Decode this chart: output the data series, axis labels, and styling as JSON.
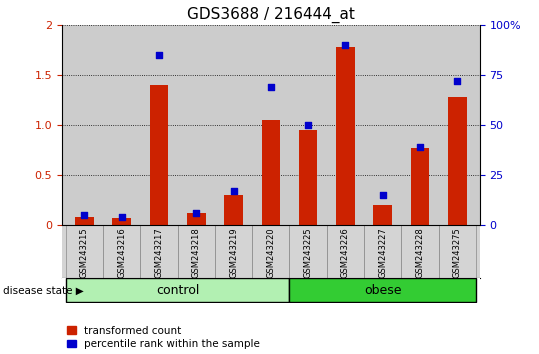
{
  "title": "GDS3688 / 216444_at",
  "samples": [
    "GSM243215",
    "GSM243216",
    "GSM243217",
    "GSM243218",
    "GSM243219",
    "GSM243220",
    "GSM243225",
    "GSM243226",
    "GSM243227",
    "GSM243228",
    "GSM243275"
  ],
  "transformed_count": [
    0.08,
    0.07,
    1.4,
    0.12,
    0.3,
    1.05,
    0.95,
    1.78,
    0.2,
    0.77,
    1.28
  ],
  "percentile_rank": [
    5,
    4,
    85,
    6,
    17,
    69,
    50,
    90,
    15,
    39,
    72
  ],
  "groups": [
    {
      "label": "control",
      "start": 0,
      "end": 6,
      "color": "#b2f0b2"
    },
    {
      "label": "obese",
      "start": 6,
      "end": 11,
      "color": "#33cc33"
    }
  ],
  "ylim_left": [
    0,
    2
  ],
  "ylim_right": [
    0,
    100
  ],
  "yticks_left": [
    0,
    0.5,
    1.0,
    1.5,
    2.0
  ],
  "ytick_labels_left": [
    "0",
    "0.5",
    "1.0",
    "1.5",
    "2"
  ],
  "yticks_right": [
    0,
    25,
    50,
    75,
    100
  ],
  "ytick_labels_right": [
    "0",
    "25",
    "50",
    "75",
    "100%"
  ],
  "bar_color": "#cc2200",
  "dot_color": "#0000cc",
  "dot_size": 18,
  "bar_width": 0.5,
  "legend_labels": [
    "transformed count",
    "percentile rank within the sample"
  ],
  "legend_colors": [
    "#cc2200",
    "#0000cc"
  ],
  "tick_label_color_left": "#cc2200",
  "tick_label_color_right": "#0000cc",
  "background_plot": "#cccccc",
  "background_sample": "#d4d4d4"
}
